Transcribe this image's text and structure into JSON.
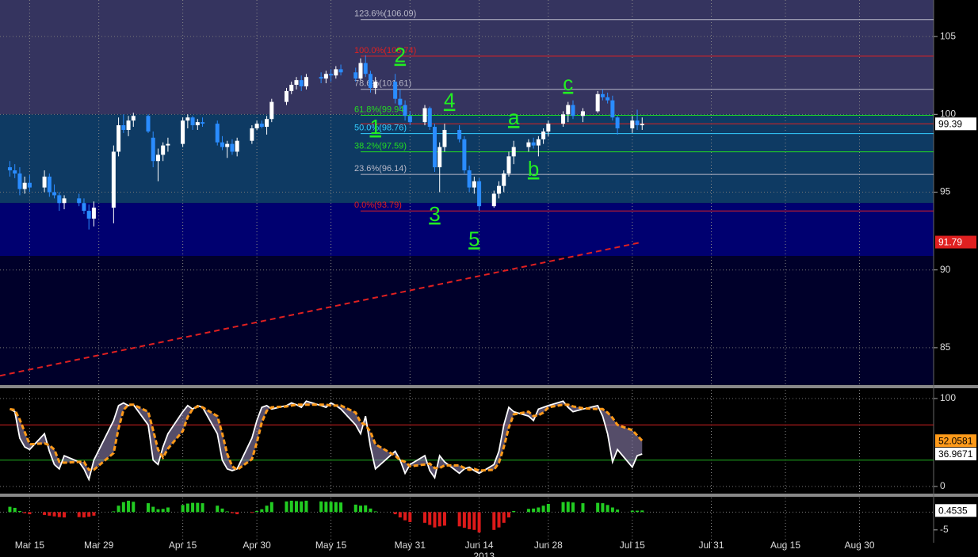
{
  "chart_data": [
    {
      "type": "candlestick",
      "year": "2013",
      "xlim": [
        "Mar 9",
        "Sep 14"
      ],
      "xticks": [
        "Mar 15",
        "Mar 29",
        "Apr 15",
        "Apr 30",
        "May 15",
        "May 31",
        "Jun 14",
        "Jun 28",
        "Jul 15",
        "Jul 31",
        "Aug 15",
        "Aug 30"
      ],
      "ylim": [
        82.6,
        107.35
      ],
      "yticks": [
        85,
        90,
        95,
        100,
        105
      ],
      "grid": true,
      "up_color": "#ffffff",
      "down_color": "#2a8cff",
      "background": "#00002a",
      "zones": [
        {
          "from": 100,
          "to": 107.35,
          "color": "#35345f"
        },
        {
          "from": 94.3,
          "to": 100,
          "color": "#0e3a63"
        },
        {
          "from": 90.9,
          "to": 94.3,
          "color": "#000070"
        }
      ],
      "x": [
        "Mar 11",
        "Mar 12",
        "Mar 13",
        "Mar 14",
        "Mar 15",
        "Mar 18",
        "Mar 19",
        "Mar 20",
        "Mar 21",
        "Mar 22",
        "Mar 25",
        "Mar 26",
        "Mar 27",
        "Mar 28",
        "Apr 1",
        "Apr 2",
        "Apr 3",
        "Apr 4",
        "Apr 5",
        "Apr 8",
        "Apr 9",
        "Apr 10",
        "Apr 11",
        "Apr 12",
        "Apr 15",
        "Apr 16",
        "Apr 17",
        "Apr 18",
        "Apr 19",
        "Apr 22",
        "Apr 23",
        "Apr 24",
        "Apr 25",
        "Apr 26",
        "Apr 29",
        "Apr 30",
        "May 1",
        "May 2",
        "May 3",
        "May 6",
        "May 7",
        "May 8",
        "May 9",
        "May 10",
        "May 13",
        "May 14",
        "May 15",
        "May 16",
        "May 17",
        "May 20",
        "May 21",
        "May 22",
        "May 23",
        "May 24",
        "May 28",
        "May 29",
        "May 30",
        "May 31",
        "Jun 3",
        "Jun 4",
        "Jun 5",
        "Jun 6",
        "Jun 7",
        "Jun 10",
        "Jun 11",
        "Jun 12",
        "Jun 13",
        "Jun 14",
        "Jun 17",
        "Jun 18",
        "Jun 19",
        "Jun 20",
        "Jun 21",
        "Jun 24",
        "Jun 25",
        "Jun 26",
        "Jun 27",
        "Jun 28",
        "Jul 1",
        "Jul 2",
        "Jul 3",
        "Jul 5",
        "Jul 8",
        "Jul 9",
        "Jul 10",
        "Jul 11",
        "Jul 12",
        "Jul 15",
        "Jul 16",
        "Jul 17"
      ],
      "open": [
        96.6,
        96.4,
        96.2,
        95.2,
        95.6,
        95.3,
        96.0,
        95.0,
        94.8,
        94.3,
        94.6,
        94.3,
        93.8,
        93.3,
        94.0,
        97.6,
        99.3,
        99.0,
        99.6,
        99.9,
        98.5,
        97.0,
        97.4,
        98.0,
        98.1,
        99.6,
        99.8,
        99.3,
        99.5,
        99.4,
        98.2,
        97.9,
        98.1,
        97.6,
        98.3,
        99.1,
        99.4,
        99.2,
        99.7,
        100.8,
        101.5,
        101.9,
        102.2,
        101.8,
        102.4,
        102.3,
        102.6,
        102.5,
        102.9,
        102.7,
        102.3,
        103.3,
        102.6,
        101.7,
        102.1,
        101.0,
        100.6,
        99.9,
        99.5,
        100.4,
        99.2,
        96.6,
        97.9,
        99.0,
        98.4,
        96.4,
        95.3,
        95.7,
        94.1,
        94.9,
        95.4,
        96.2,
        97.3,
        97.9,
        98.2,
        98.0,
        98.4,
        98.9,
        99.4,
        100.0,
        100.6,
        99.9,
        100.2,
        101.3,
        101.1,
        100.9,
        99.8,
        99.1,
        99.6,
        99.3
      ],
      "high": [
        97.0,
        96.8,
        96.6,
        96.0,
        96.1,
        96.4,
        96.2,
        95.5,
        95.0,
        94.8,
        94.9,
        94.6,
        94.2,
        94.4,
        98.0,
        99.8,
        100.0,
        99.9,
        100.1,
        100.0,
        98.9,
        97.8,
        98.2,
        98.5,
        99.8,
        100.0,
        99.9,
        99.7,
        99.8,
        99.6,
        98.6,
        98.3,
        98.4,
        98.5,
        99.3,
        99.6,
        99.6,
        99.9,
        101.0,
        101.7,
        102.1,
        102.4,
        102.5,
        102.6,
        102.7,
        102.8,
        102.9,
        103.1,
        103.2,
        103.0,
        103.6,
        103.8,
        102.8,
        102.4,
        102.6,
        101.6,
        100.9,
        100.2,
        100.6,
        100.5,
        99.4,
        98.2,
        99.4,
        99.3,
        98.6,
        96.7,
        96.0,
        95.9,
        95.1,
        95.7,
        96.4,
        97.6,
        98.3,
        98.4,
        98.5,
        98.6,
        99.1,
        99.6,
        100.2,
        100.8,
        100.9,
        100.4,
        101.5,
        101.6,
        101.4,
        101.2,
        99.9,
        99.9,
        100.3,
        99.8
      ],
      "low": [
        96.0,
        95.9,
        94.8,
        94.9,
        95.0,
        95.0,
        94.7,
        94.6,
        93.8,
        93.9,
        94.1,
        93.6,
        92.6,
        92.8,
        93.0,
        97.3,
        98.8,
        98.6,
        99.2,
        98.8,
        96.6,
        95.7,
        97.0,
        97.6,
        97.9,
        99.1,
        99.0,
        99.0,
        99.2,
        98.0,
        97.7,
        97.2,
        97.4,
        97.3,
        98.1,
        99.0,
        99.1,
        98.7,
        99.5,
        100.6,
        101.3,
        101.6,
        101.5,
        101.6,
        102.0,
        102.0,
        102.1,
        102.3,
        102.5,
        102.1,
        102.2,
        102.4,
        101.4,
        101.3,
        100.7,
        100.3,
        99.6,
        99.3,
        99.3,
        99.0,
        96.3,
        95.0,
        97.6,
        98.2,
        96.2,
        95.0,
        94.9,
        93.8,
        94.0,
        94.6,
        95.0,
        96.0,
        96.8,
        97.6,
        97.8,
        97.3,
        98.1,
        98.6,
        99.2,
        99.5,
        99.7,
        99.5,
        100.1,
        100.9,
        100.7,
        99.6,
        98.7,
        98.8,
        99.0,
        99.0
      ],
      "close": [
        96.4,
        96.2,
        95.2,
        95.6,
        95.3,
        96.0,
        95.0,
        94.8,
        94.3,
        94.6,
        94.3,
        93.8,
        93.3,
        94.0,
        97.6,
        99.3,
        99.0,
        99.6,
        99.9,
        98.9,
        97.0,
        97.4,
        98.0,
        98.1,
        99.6,
        99.8,
        99.3,
        99.5,
        99.4,
        98.2,
        97.9,
        98.1,
        97.6,
        98.3,
        99.1,
        99.4,
        99.2,
        99.7,
        100.8,
        101.5,
        101.9,
        102.2,
        101.8,
        102.4,
        102.3,
        102.6,
        102.5,
        102.9,
        102.7,
        102.3,
        103.3,
        102.6,
        101.7,
        102.1,
        101.0,
        100.6,
        99.9,
        99.5,
        100.4,
        99.2,
        96.6,
        97.9,
        99.0,
        98.4,
        96.4,
        95.3,
        95.7,
        94.1,
        94.9,
        95.4,
        96.2,
        97.3,
        97.9,
        98.2,
        98.0,
        98.4,
        98.9,
        99.4,
        100.0,
        100.6,
        99.9,
        100.2,
        101.3,
        101.1,
        100.9,
        99.8,
        99.1,
        99.6,
        99.3,
        99.39
      ],
      "last_color": "#e02020",
      "trend": {
        "x": [
          "Mar 9",
          "Jul 17"
        ],
        "values": [
          83.2,
          91.79
        ],
        "color": "#e02020"
      },
      "fib_start": "May 21",
      "fib_levels": [
        {
          "label": "123.6%(106.09)",
          "value": 106.09,
          "color": "#b8b8c8"
        },
        {
          "label": "100.0%(103.74)",
          "value": 103.74,
          "color": "#e02020"
        },
        {
          "label": "78.6%(101.61)",
          "value": 101.61,
          "color": "#b8b8c8"
        },
        {
          "label": "61.8%(99.94)",
          "value": 99.94,
          "color": "#22dd22"
        },
        {
          "label": "50.0%(98.76)",
          "value": 98.76,
          "color": "#33ccff"
        },
        {
          "label": "38.2%(97.59)",
          "value": 97.59,
          "color": "#22dd22"
        },
        {
          "label": "23.6%(96.14)",
          "value": 96.14,
          "color": "#b8b8c8"
        },
        {
          "label": "0.0%(93.79)",
          "value": 93.79,
          "color": "#e02020"
        }
      ],
      "annotations": [
        {
          "text": "1",
          "x": "May 24",
          "y": 99.1
        },
        {
          "text": "2",
          "x": "May 29",
          "y": 103.7
        },
        {
          "text": "3",
          "x": "Jun 5",
          "y": 93.5
        },
        {
          "text": "4",
          "x": "Jun 8",
          "y": 100.8
        },
        {
          "text": "5",
          "x": "Jun 13",
          "y": 91.9
        },
        {
          "text": "a",
          "x": "Jun 21",
          "y": 99.7
        },
        {
          "text": "b",
          "x": "Jun 25",
          "y": 96.4
        },
        {
          "text": "c",
          "x": "Jul 2",
          "y": 101.9
        }
      ]
    },
    {
      "type": "line",
      "ylim": [
        -8.1,
        111.7
      ],
      "yticks": [
        0,
        100
      ],
      "grid": true,
      "fill_color": "#9a8cc0",
      "hlines": [
        {
          "value": 70,
          "color": "#d02020"
        },
        {
          "value": 30,
          "color": "#20b020"
        }
      ],
      "series": [
        {
          "color": "#ffffff",
          "dash": false,
          "values": [
            88,
            85,
            55,
            45,
            42,
            60,
            40,
            25,
            20,
            35,
            28,
            20,
            8,
            30,
            75,
            92,
            95,
            92,
            93,
            70,
            30,
            25,
            45,
            60,
            85,
            92,
            88,
            92,
            90,
            60,
            30,
            20,
            18,
            20,
            55,
            75,
            90,
            92,
            88,
            92,
            95,
            93,
            90,
            97,
            92,
            90,
            95,
            92,
            88,
            70,
            60,
            80,
            45,
            20,
            40,
            30,
            15,
            25,
            35,
            18,
            10,
            35,
            28,
            15,
            20,
            22,
            18,
            15,
            25,
            40,
            70,
            90,
            85,
            80,
            75,
            88,
            90,
            92,
            97,
            90,
            85,
            88,
            92,
            80,
            60,
            28,
            42,
            22,
            35,
            36.9671
          ]
        },
        {
          "color": "#ff9a1a",
          "dash": true,
          "values": [
            88,
            87,
            76,
            62,
            48,
            49,
            47,
            42,
            28,
            27,
            28,
            28,
            19,
            19,
            38,
            66,
            87,
            93,
            93,
            85,
            64,
            42,
            33,
            43,
            63,
            79,
            88,
            91,
            90,
            80,
            60,
            37,
            23,
            19,
            31,
            50,
            73,
            86,
            90,
            91,
            92,
            93,
            93,
            93,
            93,
            93,
            92,
            92,
            92,
            84,
            73,
            70,
            62,
            48,
            35,
            30,
            28,
            23,
            25,
            26,
            21,
            21,
            24,
            24,
            21,
            19,
            20,
            18,
            19,
            27,
            45,
            67,
            82,
            85,
            80,
            81,
            84,
            90,
            93,
            93,
            91,
            89,
            88,
            88,
            84,
            78,
            70,
            64,
            58,
            52.0581
          ]
        }
      ]
    },
    {
      "type": "bar",
      "ylim": [
        -8.6,
        4.3
      ],
      "yticks": [
        -5
      ],
      "up_color": "#22cc22",
      "down_color": "#dd1a1a",
      "values": [
        1.5,
        1.2,
        0.3,
        -0.3,
        -0.6,
        -0.8,
        -1.0,
        -1.2,
        -1.4,
        -1.5,
        -1.4,
        -1.5,
        -1.3,
        -1.0,
        0.2,
        1.8,
        2.8,
        3.2,
        2.9,
        2.5,
        1.5,
        0.8,
        0.9,
        1.3,
        2.0,
        2.4,
        2.6,
        2.6,
        2.5,
        1.8,
        1.0,
        0.2,
        -0.3,
        -0.6,
        -0.2,
        0.3,
        0.8,
        1.8,
        2.8,
        3.0,
        3.2,
        3.1,
        3.0,
        3.2,
        3.0,
        2.9,
        2.9,
        2.8,
        2.7,
        2.1,
        1.8,
        1.9,
        1.0,
        0.2,
        -0.6,
        -1.5,
        -2.3,
        -2.8,
        -3.0,
        -3.6,
        -4.3,
        -4.0,
        -3.8,
        -4.0,
        -4.4,
        -4.8,
        -5.0,
        -5.7,
        -5.0,
        -4.3,
        -3.0,
        -1.5,
        0.3,
        0.9,
        1.0,
        1.3,
        1.8,
        2.3,
        2.8,
        2.9,
        2.7,
        2.5,
        2.6,
        2.5,
        2.0,
        1.3,
        0.7,
        0.4,
        0.4,
        0.4535
      ]
    }
  ]
}
